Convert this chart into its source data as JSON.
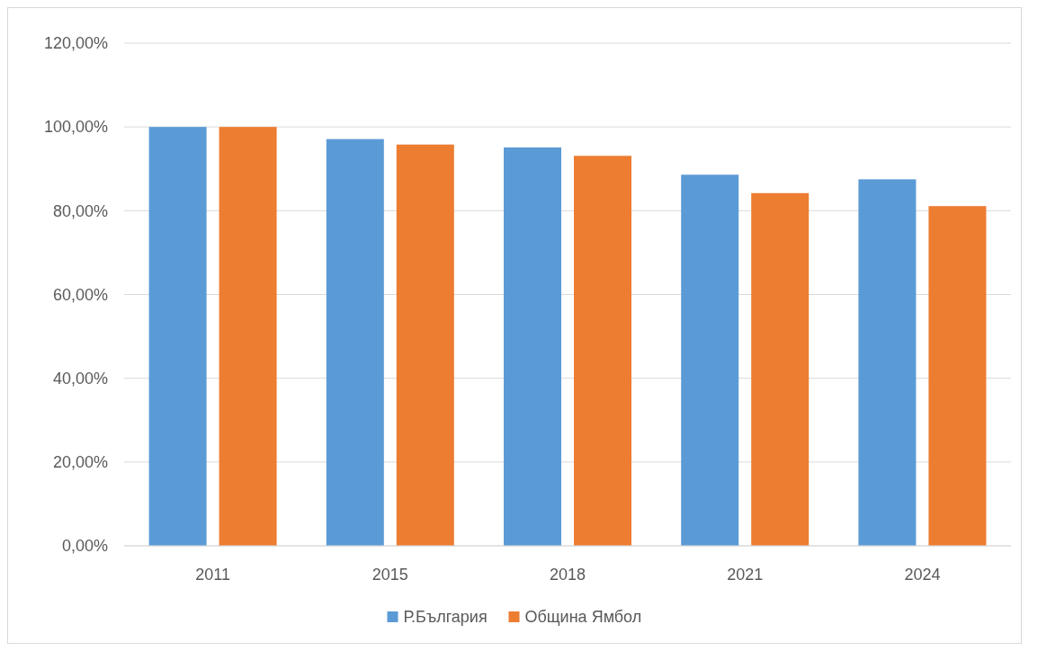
{
  "chart_data": {
    "type": "bar",
    "categories": [
      "2011",
      "2015",
      "2018",
      "2021",
      "2024"
    ],
    "series": [
      {
        "name": "Р.България",
        "color": "#5b9bd5",
        "values": [
          100,
          97.1,
          95.1,
          88.6,
          87.5
        ]
      },
      {
        "name": "Община Ямбол",
        "color": "#ed7d31",
        "values": [
          100,
          95.8,
          93.1,
          84.2,
          81.1
        ]
      }
    ],
    "ylim": [
      0,
      120
    ],
    "yticks": [
      {
        "value": 0,
        "label": "0,00%"
      },
      {
        "value": 20,
        "label": "20,00%"
      },
      {
        "value": 40,
        "label": "40,00%"
      },
      {
        "value": 60,
        "label": "60,00%"
      },
      {
        "value": 80,
        "label": "80,00%"
      },
      {
        "value": 100,
        "label": "100,00%"
      },
      {
        "value": 120,
        "label": "120,00%"
      }
    ],
    "grid": "y",
    "legend": "bottom"
  }
}
